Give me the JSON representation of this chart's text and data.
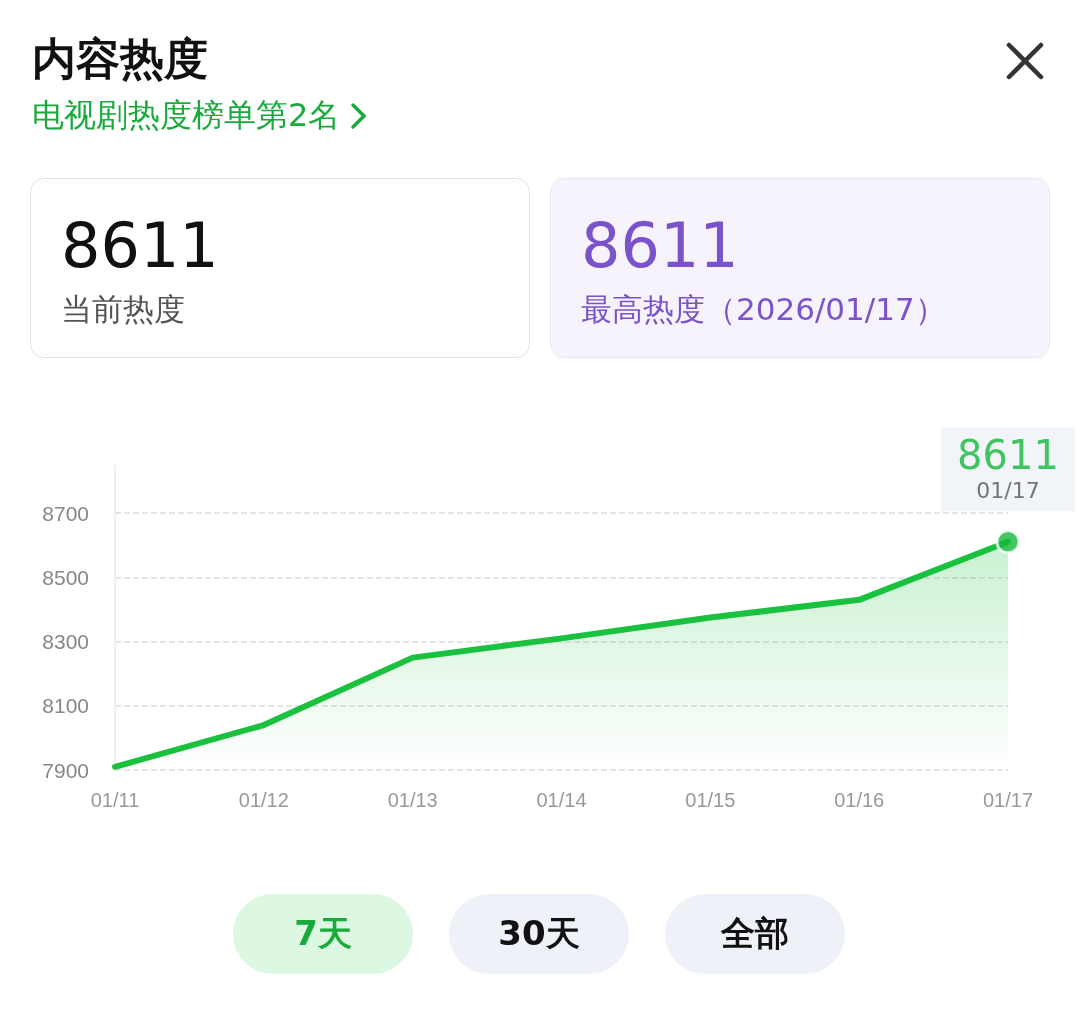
{
  "chart_data": {
    "type": "area",
    "title": "内容热度",
    "subtitle": "电视剧热度榜单第2名",
    "annotations": [
      "8611",
      "当前热度",
      "8611",
      "最高热度（2026/01/17）",
      "7天",
      "30天",
      "全部",
      {
        "text": "01/17",
        "x": "01/17",
        "y": 8611
      }
    ],
    "categories": [
      "01/11",
      "01/12",
      "01/13",
      "01/14",
      "01/15",
      "01/16",
      "01/17"
    ],
    "series": [
      {
        "color": "#19c13e",
        "values": [
          7910,
          8040,
          8250,
          8310,
          8375,
          8430,
          8611
        ]
      },
      {
        "type": "scatter",
        "color": "#13b83a",
        "marker": "circle",
        "x": [
          "01/17"
        ],
        "values": [
          8611
        ],
        "value_labels": [
          "8611"
        ]
      }
    ],
    "ylim": [
      7900,
      8850
    ],
    "yticks": [
      7900,
      8100,
      8300,
      8500,
      8700
    ],
    "grid": "y",
    "marker": "none"
  }
}
